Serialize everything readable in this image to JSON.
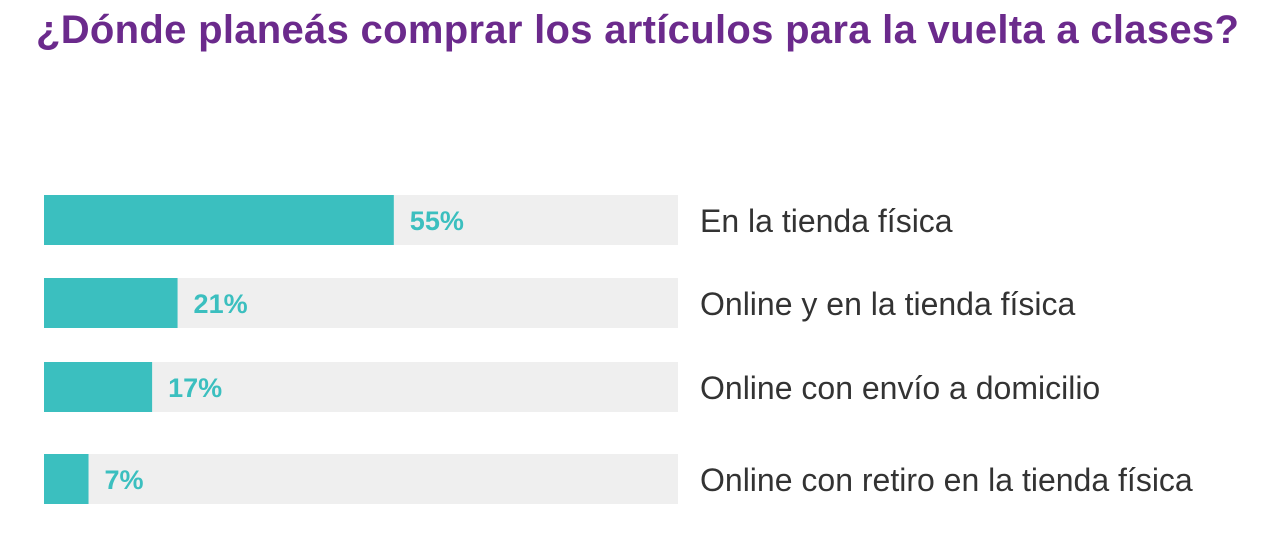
{
  "chart_data": {
    "type": "bar",
    "orientation": "horizontal",
    "title": "¿Dónde planeás comprar los artículos para la vuelta a clases?",
    "categories": [
      "En la tienda física",
      "Online y en la tienda física",
      "Online con envío a domicilio",
      "Online con retiro en la tienda física"
    ],
    "values": [
      55,
      21,
      17,
      7
    ],
    "value_labels": [
      "55%",
      "21%",
      "17%",
      "7%"
    ],
    "xlim": [
      0,
      100
    ],
    "grid": false,
    "legend": "none"
  },
  "colors": {
    "title": "#6b2a8c",
    "bar": "#3bbfbf",
    "track": "#efefef",
    "value_label": "#3bbfbf",
    "category_label": "#333333"
  }
}
